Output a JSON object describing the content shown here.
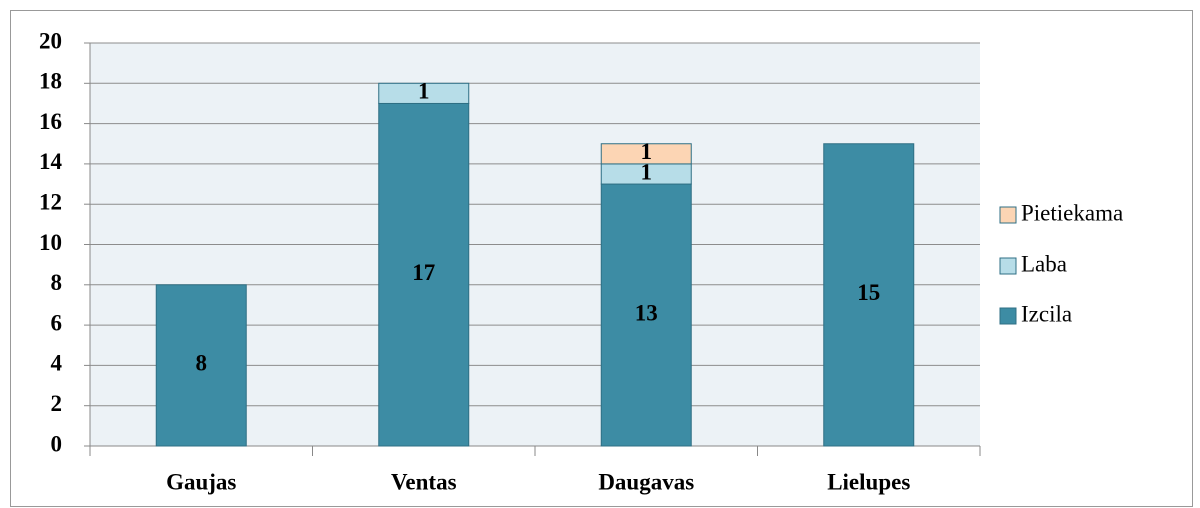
{
  "chart_data": {
    "type": "stacked_bar",
    "categories": [
      "Gaujas",
      "Ventas",
      "Daugavas",
      "Lielupes"
    ],
    "series": [
      {
        "name": "Izcila",
        "color": "#3d8ca4",
        "values": [
          8,
          17,
          13,
          15
        ]
      },
      {
        "name": "Laba",
        "color": "#b7dde8",
        "values": [
          null,
          1,
          1,
          null
        ]
      },
      {
        "name": "Pietiekama",
        "color": "#fcd5b4",
        "values": [
          null,
          null,
          1,
          null
        ]
      }
    ],
    "ylim": [
      0,
      20
    ],
    "yticks": [
      0,
      2,
      4,
      6,
      8,
      10,
      12,
      14,
      16,
      18,
      20
    ],
    "grid": true,
    "legend": "right"
  }
}
